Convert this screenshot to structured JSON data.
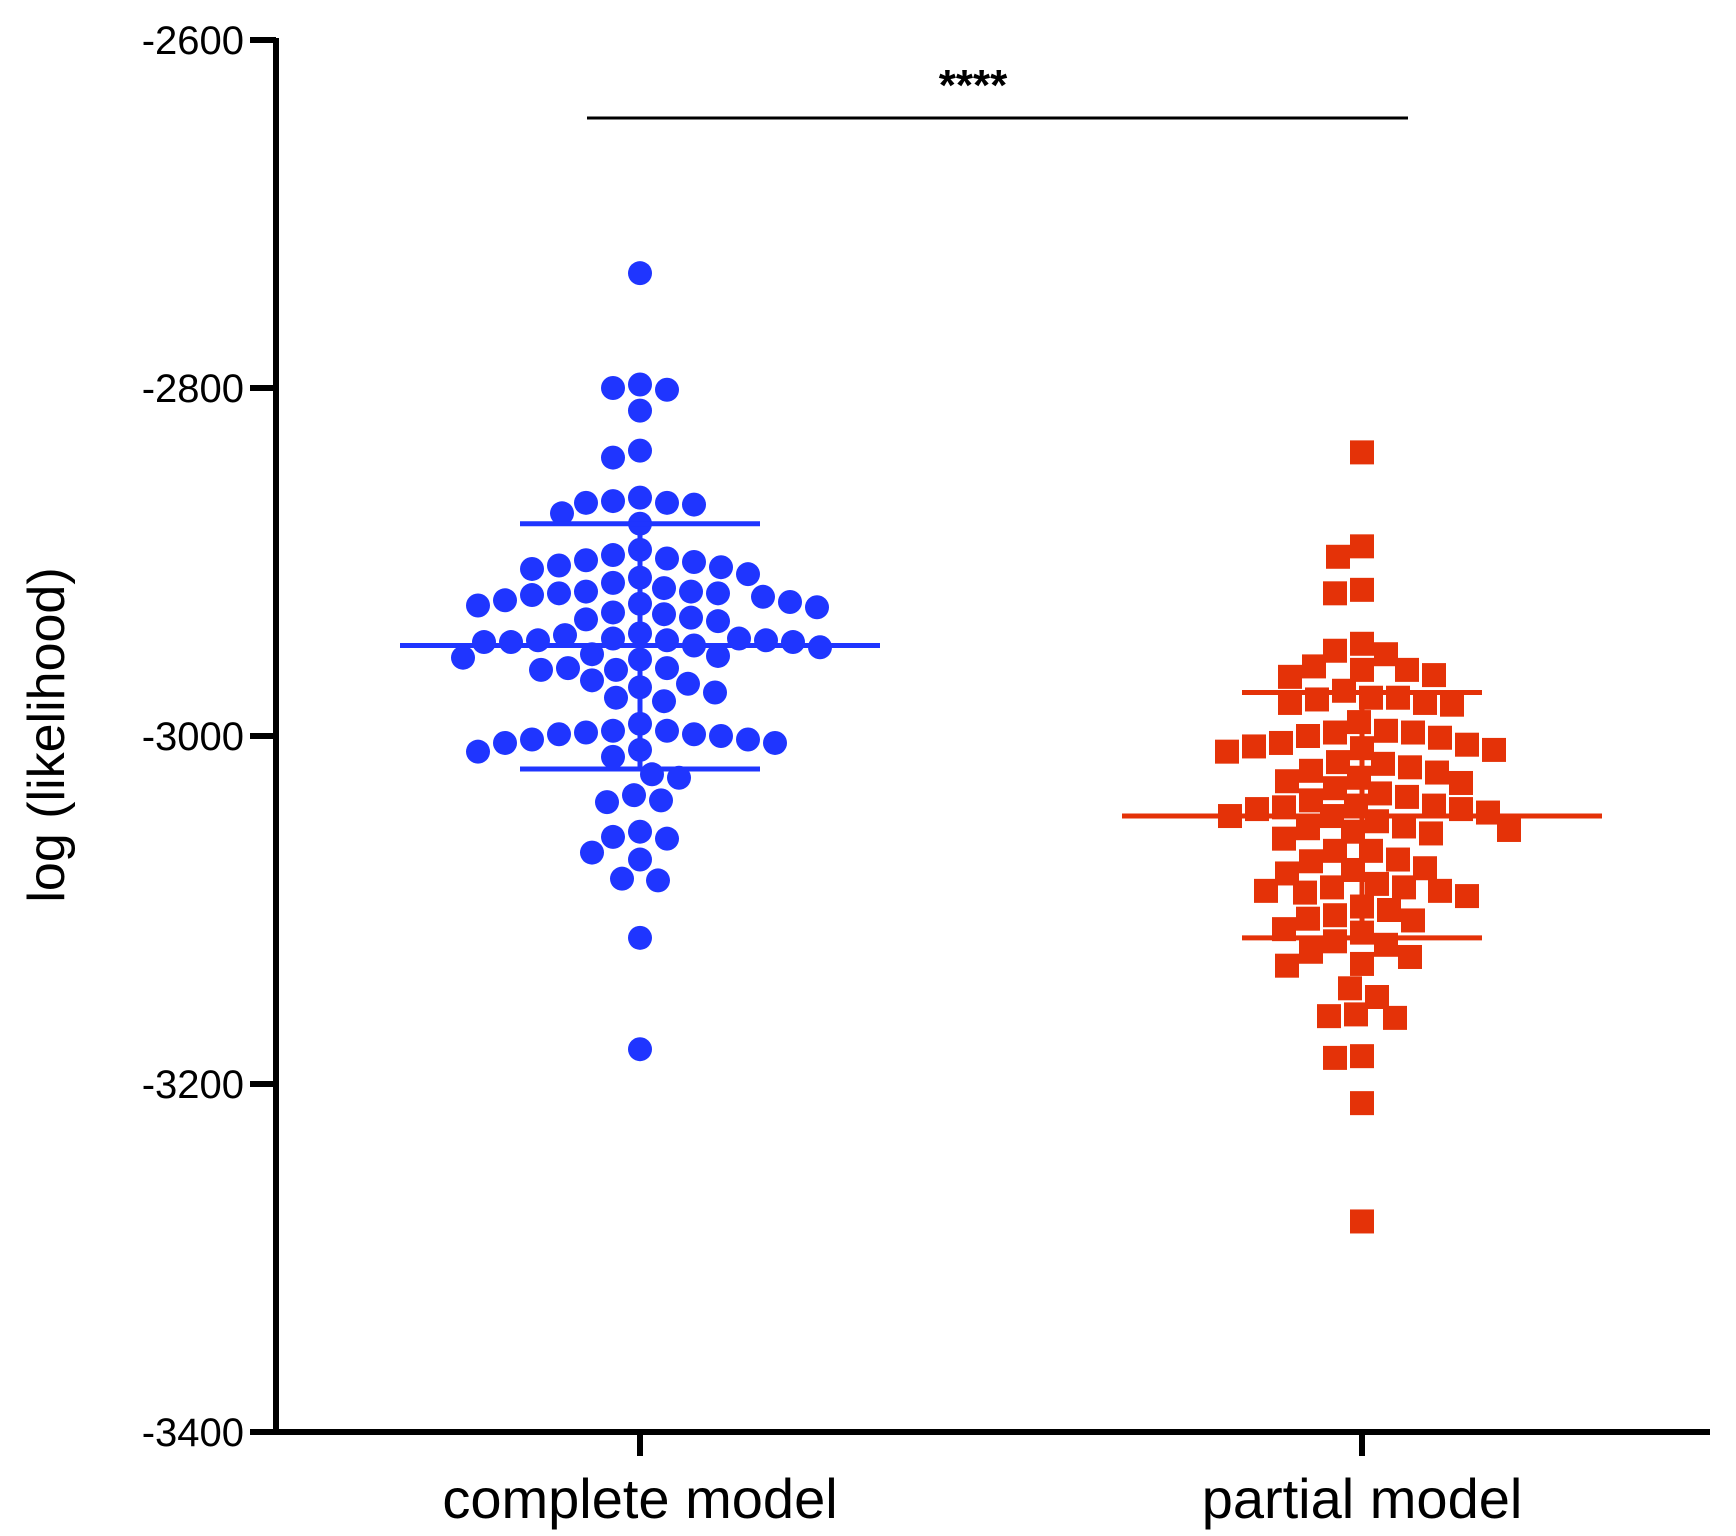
{
  "chart_data": {
    "type": "scatter",
    "title": "",
    "xlabel": "",
    "ylabel": "log (likelihood)",
    "ylim": [
      -3400,
      -2600
    ],
    "yticks": [
      "-2600",
      "-2800",
      "-3000",
      "-3200",
      "-3400"
    ],
    "categories": [
      "complete model",
      "partial model"
    ],
    "significance": "****",
    "series": [
      {
        "category": "complete model",
        "color": "#1f35ff",
        "marker": "circle",
        "mean": -2948,
        "sd_upper": -2878,
        "sd_lower": -3019,
        "values": [
          -2734,
          -2800,
          -2813,
          -2801,
          -2798,
          -2836,
          -2840,
          -2863,
          -2866,
          -2872,
          -2878,
          -2867,
          -2866,
          -2865,
          -2898,
          -2899,
          -2903,
          -2907,
          -2912,
          -2909,
          -2904,
          -2902,
          -2900,
          -2896,
          -2893,
          -2915,
          -2917,
          -2918,
          -2919,
          -2923,
          -2924,
          -2926,
          -2929,
          -2932,
          -2934,
          -2933,
          -2930,
          -2925,
          -2922,
          -2920,
          -2918,
          -2917,
          -2941,
          -2944,
          -2945,
          -2946,
          -2946,
          -2948,
          -2953,
          -2955,
          -2956,
          -2954,
          -2949,
          -2946,
          -2945,
          -2945,
          -2944,
          -2942,
          -2961,
          -2962,
          -2970,
          -2975,
          -2980,
          -2978,
          -2972,
          -2968,
          -2962,
          -2961,
          -2997,
          -2998,
          -2999,
          -3002,
          -3004,
          -3008,
          -3009,
          -3004,
          -3002,
          -3000,
          -2999,
          -2997,
          -2993,
          -3012,
          -3022,
          -3038,
          -3034,
          -3024,
          -3037,
          -3058,
          -3059,
          -3055,
          -3071,
          -3067,
          -3083,
          -3082,
          -3116,
          -3180
        ]
      },
      {
        "category": "partial model",
        "color": "#e43208",
        "marker": "square",
        "mean": -3046,
        "sd_upper": -2975,
        "sd_lower": -3116,
        "values": [
          -2837,
          -2891,
          -2897,
          -2918,
          -2916,
          -2947,
          -2953,
          -2966,
          -2962,
          -2962,
          -2960,
          -2951,
          -2965,
          -2978,
          -2979,
          -2981,
          -2982,
          -2981,
          -2978,
          -2974,
          -2992,
          -2998,
          -3001,
          -3005,
          -3007,
          -3009,
          -3008,
          -3006,
          -3004,
          -3000,
          -2998,
          -2997,
          -3016,
          -3020,
          -3024,
          -3026,
          -3033,
          -3030,
          -3027,
          -3021,
          -3015,
          -3018,
          -3040,
          -3041,
          -3042,
          -3046,
          -3049,
          -3053,
          -3054,
          -3056,
          -3055,
          -3052,
          -3046,
          -3044,
          -3042,
          -3040,
          -3037,
          -3035,
          -3066,
          -3071,
          -3076,
          -3079,
          -3077,
          -3072,
          -3066,
          -3059,
          -3087,
          -3090,
          -3089,
          -3100,
          -3103,
          -3106,
          -3105,
          -3098,
          -3092,
          -3087,
          -3089,
          -3085,
          -3113,
          -3120,
          -3124,
          -3132,
          -3131,
          -3127,
          -3118,
          -3111,
          -3145,
          -3160,
          -3162,
          -3161,
          -3150,
          -3185,
          -3184,
          -3211,
          -3279
        ]
      }
    ]
  }
}
